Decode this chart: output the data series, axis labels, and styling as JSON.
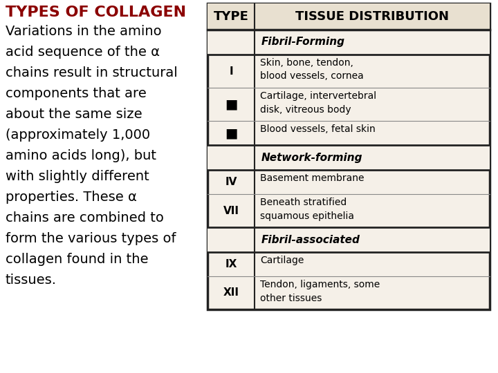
{
  "title": "TYPES OF COLLAGEN",
  "title_color": "#8b0000",
  "body_text_lines": [
    "Variations in the amino",
    "acid sequence of the α",
    "chains result in structural",
    "components that are",
    "about the same size",
    "(approximately 1,000",
    "amino acids long), but",
    "with slightly different",
    "properties. These α",
    "chains are combined to",
    "form the various types of",
    "collagen found in the",
    "tissues."
  ],
  "table_header_col1": "TYPE",
  "table_header_col2": "TISSUE DISTRIBUTION",
  "sections": [
    {
      "section_label": "Fibril-Forming",
      "rows": [
        {
          "type": "I",
          "type_is_square": false,
          "distribution": "Skin, bone, tendon,\nblood vessels, cornea"
        },
        {
          "type": "■",
          "type_is_square": true,
          "distribution": "Cartilage, intervertebral\ndisk, vitreous body"
        },
        {
          "type": "■",
          "type_is_square": true,
          "distribution": "Blood vessels, fetal skin"
        }
      ]
    },
    {
      "section_label": "Network-forming",
      "rows": [
        {
          "type": "IV",
          "type_is_square": false,
          "distribution": "Basement membrane"
        },
        {
          "type": "VII",
          "type_is_square": false,
          "distribution": "Beneath stratified\nsquamous epithelia"
        }
      ]
    },
    {
      "section_label": "Fibril-associated",
      "rows": [
        {
          "type": "IX",
          "type_is_square": false,
          "distribution": "Cartilage"
        },
        {
          "type": "XII",
          "type_is_square": false,
          "distribution": "Tendon, ligaments, some\nother tissues"
        }
      ]
    }
  ],
  "bg_color": "#ffffff",
  "table_bg": "#f5f0e8",
  "table_border_color": "#222222",
  "text_color": "#000000",
  "section_label_color": "#000000",
  "body_font_size": 14,
  "title_font_size": 16,
  "header_font_size": 13,
  "section_font_size": 11,
  "row_font_size": 10,
  "type_font_size": 11
}
